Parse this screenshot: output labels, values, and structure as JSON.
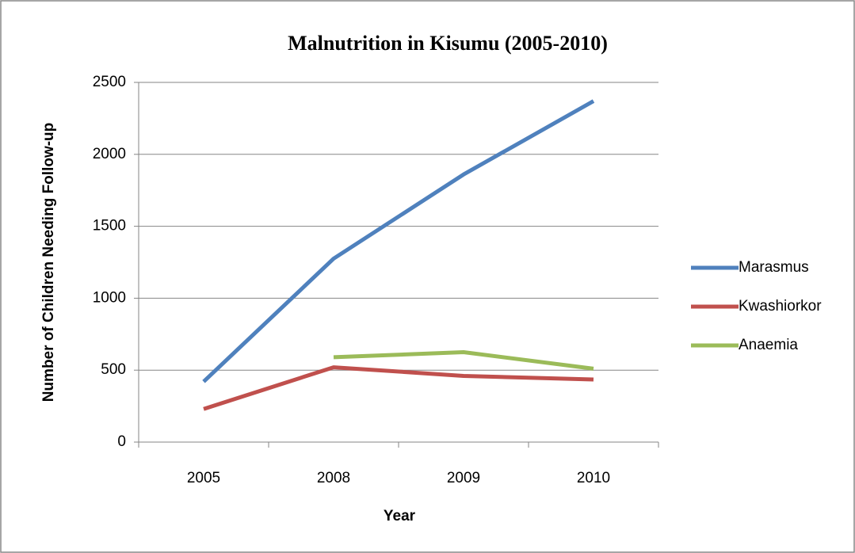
{
  "chart_data": {
    "type": "line",
    "title": "Malnutrition in Kisumu (2005-2010)",
    "x_label": "Year",
    "y_label": "Number of Children Needing Follow-up",
    "categories": [
      "2005",
      "2008",
      "2009",
      "2010"
    ],
    "series": [
      {
        "name": "Marasmus",
        "color": "#4f81bd",
        "values": [
          420,
          1275,
          1860,
          2370
        ]
      },
      {
        "name": "Kwashiorkor",
        "color": "#c0504d",
        "values": [
          230,
          520,
          460,
          435
        ]
      },
      {
        "name": "Anaemia",
        "color": "#9bbb59",
        "values": [
          null,
          590,
          625,
          510
        ]
      }
    ],
    "ylim": [
      0,
      2500
    ],
    "yticks": [
      0,
      500,
      1000,
      1500,
      2000,
      2500
    ],
    "grid": true,
    "legend": "right"
  }
}
